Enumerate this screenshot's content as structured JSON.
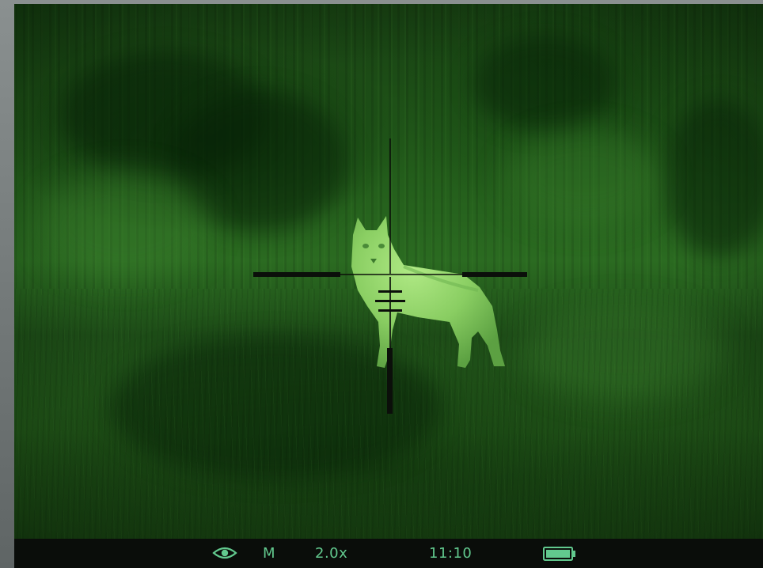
{
  "status_bar": {
    "view_mode_icon": "eye-icon",
    "mode": "M",
    "zoom": "2.0x",
    "time": "11:10",
    "battery_icon": "battery-icon",
    "battery_level": 1.0
  },
  "colors": {
    "night_vision_green": "#2b6b21",
    "status_text": "#62c98e",
    "reticle": "#0b0f0a",
    "status_bar_bg": "#0a0d0a"
  }
}
